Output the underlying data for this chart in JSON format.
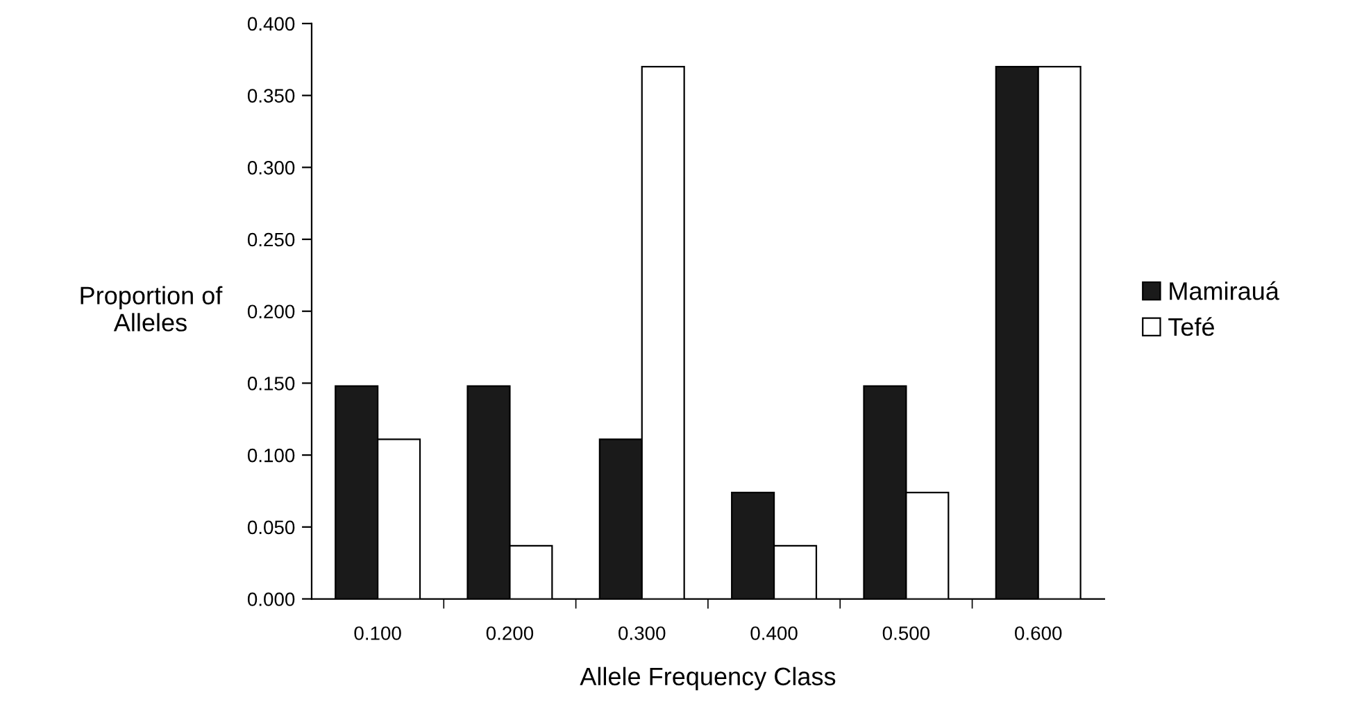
{
  "chart_data": {
    "type": "bar",
    "xlabel": "Allele Frequency Class",
    "ylabel": "Proportion of\nAlleles",
    "categories": [
      "0.100",
      "0.200",
      "0.300",
      "0.400",
      "0.500",
      "0.600"
    ],
    "series": [
      {
        "name": "Mamirauá",
        "color": "#1a1a1a",
        "values": [
          0.148,
          0.148,
          0.111,
          0.074,
          0.148,
          0.37
        ]
      },
      {
        "name": "Tefé",
        "color": "#ffffff",
        "values": [
          0.111,
          0.037,
          0.37,
          0.037,
          0.074,
          0.37
        ]
      }
    ],
    "ylim": [
      0,
      0.4
    ],
    "yticks": [
      {
        "value": 0,
        "label": "0.000"
      },
      {
        "value": 0.05,
        "label": "0.050"
      },
      {
        "value": 0.1,
        "label": "0.100"
      },
      {
        "value": 0.15,
        "label": "0.150"
      },
      {
        "value": 0.2,
        "label": "0.200"
      },
      {
        "value": 0.25,
        "label": "0.250"
      },
      {
        "value": 0.3,
        "label": "0.300"
      },
      {
        "value": 0.35,
        "label": "0.350"
      },
      {
        "value": 0.4,
        "label": "0.400"
      }
    ],
    "grid": false,
    "legend": "right"
  }
}
